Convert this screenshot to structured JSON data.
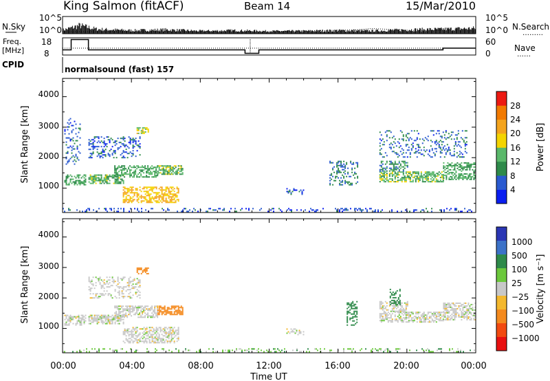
{
  "header": {
    "title_left": "King Salmon (fitACF)",
    "title_center": "Beam 14",
    "title_right": "15/Mar/2010"
  },
  "panel_labels": {
    "nsky": "N.Sky",
    "nsearch": "N.Search",
    "nsearch_dots": "………",
    "freq": "Freq.",
    "mhz": "[MHz]",
    "nave": "Nave",
    "nave_dots": "……",
    "cpid": "CPID",
    "cpid_value": "normalsound (fast) 157"
  },
  "noise_axis": {
    "left_ticks": [
      "10^5",
      "10^0"
    ],
    "right_ticks": [
      "10^5",
      "10^0"
    ]
  },
  "freq_axis": {
    "left_ticks": [
      "18",
      "8"
    ],
    "right_ticks": [
      "60",
      "0"
    ]
  },
  "x_axis": {
    "label": "Time UT",
    "ticks": [
      "00:00",
      "04:00",
      "08:00",
      "12:00",
      "16:00",
      "20:00",
      "00:00"
    ]
  },
  "range_axis": {
    "label": "Slant Range [km]",
    "ticks": [
      "1000",
      "2000",
      "3000",
      "4000"
    ]
  },
  "power_scale": {
    "label": "Power [dB]",
    "ticks": [
      "4",
      "8",
      "12",
      "16",
      "20",
      "24",
      "28"
    ],
    "colors": [
      "#0a1ef0",
      "#2a5ad0",
      "#2e8a4a",
      "#5ab86a",
      "#f4d400",
      "#f4a41e",
      "#f27a00",
      "#ec1a12"
    ]
  },
  "velocity_scale": {
    "label": "Velocity [m s⁻¹]",
    "ticks": [
      "1000",
      "500",
      "100",
      "25",
      "−25",
      "−100",
      "−500",
      "−1000"
    ],
    "colors": [
      "#2a36b4",
      "#3c72c8",
      "#2e8a4a",
      "#6cc83c",
      "#c8c8c8",
      "#f4b82e",
      "#f48a1e",
      "#f24a10",
      "#e81010"
    ]
  },
  "chart_data": [
    {
      "type": "line",
      "title": "",
      "xlabel": "",
      "ylabel": "N.Sky",
      "x_units": "hours UT",
      "series": [
        {
          "name": "N.Sky",
          "x": [
            0,
            1,
            2,
            4,
            6,
            8,
            10,
            12,
            14,
            16,
            18,
            20,
            22,
            24
          ],
          "values": [
            0.2,
            0.45,
            0.25,
            0.18,
            0.22,
            0.15,
            0.18,
            0.14,
            0.15,
            0.18,
            0.16,
            0.22,
            0.25,
            0.3
          ]
        },
        {
          "name": "N.Search",
          "x": [
            0,
            8,
            12,
            17,
            18,
            20,
            24
          ],
          "values": [
            0.12,
            0.12,
            0.12,
            0.22,
            0.3,
            0.2,
            0.15
          ]
        }
      ]
    },
    {
      "type": "line",
      "title": "",
      "xlabel": "",
      "ylabel": "Freq. [MHz]",
      "ylim": [
        8,
        18
      ],
      "series": [
        {
          "name": "Freq.",
          "x": [
            0,
            0.5,
            0.5,
            1.5,
            1.5,
            10.6,
            10.6,
            11.4,
            11.4,
            22.1,
            22.1,
            24
          ],
          "values": [
            11,
            11,
            17,
            17,
            11,
            11,
            9,
            9,
            11,
            11,
            12,
            12
          ]
        },
        {
          "name": "Nave",
          "x": [
            0,
            24
          ],
          "values": [
            12,
            12
          ]
        }
      ]
    },
    {
      "type": "heatmap",
      "title": "",
      "xlabel": "Time UT",
      "ylabel": "Slant Range [km]",
      "xlim": [
        0,
        24
      ],
      "ylim": [
        200,
        4600
      ],
      "colorbar": "Power [dB]",
      "blobs": [
        {
          "t": [
            0.1,
            1.3
          ],
          "r": [
            1100,
            1450
          ],
          "v": 12,
          "d": 0.55
        },
        {
          "t": [
            0.1,
            1.0
          ],
          "r": [
            1800,
            3300
          ],
          "v": 7,
          "d": 0.18
        },
        {
          "t": [
            1.5,
            3.5
          ],
          "r": [
            1150,
            1450
          ],
          "v": 13,
          "d": 0.7
        },
        {
          "t": [
            3.0,
            5.5
          ],
          "r": [
            1350,
            1750
          ],
          "v": 12,
          "d": 0.6
        },
        {
          "t": [
            5.5,
            7.0
          ],
          "r": [
            1450,
            1750
          ],
          "v": 14,
          "d": 0.7
        },
        {
          "t": [
            3.5,
            6.7
          ],
          "r": [
            550,
            1050
          ],
          "v": 20,
          "d": 0.55
        },
        {
          "t": [
            4.3,
            5.0
          ],
          "r": [
            2800,
            3000
          ],
          "v": 18,
          "d": 0.65
        },
        {
          "t": [
            1.5,
            4.5
          ],
          "r": [
            2000,
            2700
          ],
          "v": 6,
          "d": 0.3
        },
        {
          "t": [
            13.0,
            14.0
          ],
          "r": [
            800,
            1000
          ],
          "v": 6,
          "d": 0.3
        },
        {
          "t": [
            15.5,
            17.1
          ],
          "r": [
            1100,
            1900
          ],
          "v": 8,
          "d": 0.3
        },
        {
          "t": [
            18.4,
            22.1
          ],
          "r": [
            1200,
            1550
          ],
          "v": 14,
          "d": 0.6
        },
        {
          "t": [
            18.4,
            20.0
          ],
          "r": [
            1550,
            1900
          ],
          "v": 10,
          "d": 0.5
        },
        {
          "t": [
            22.1,
            24.0
          ],
          "r": [
            1300,
            1850
          ],
          "v": 12,
          "d": 0.55
        },
        {
          "t": [
            18.4,
            23.5
          ],
          "r": [
            2000,
            2900
          ],
          "v": 7,
          "d": 0.2
        },
        {
          "t": [
            0.0,
            24.0
          ],
          "r": [
            250,
            350
          ],
          "v": 5,
          "d": 0.2
        }
      ]
    },
    {
      "type": "heatmap",
      "title": "",
      "xlabel": "Time UT",
      "ylabel": "Slant Range [km]",
      "xlim": [
        0,
        24
      ],
      "ylim": [
        200,
        4600
      ],
      "colorbar": "Velocity [m s⁻¹]",
      "blobs": [
        {
          "t": [
            0.1,
            1.3
          ],
          "r": [
            1100,
            1450
          ],
          "v": 0,
          "d": 0.55
        },
        {
          "t": [
            1.5,
            3.5
          ],
          "r": [
            1150,
            1450
          ],
          "v": 0,
          "d": 0.7
        },
        {
          "t": [
            3.0,
            5.5
          ],
          "r": [
            1350,
            1750
          ],
          "v": 0,
          "d": 0.6
        },
        {
          "t": [
            5.5,
            7.0
          ],
          "r": [
            1450,
            1750
          ],
          "v": -150,
          "d": 0.7
        },
        {
          "t": [
            3.5,
            6.7
          ],
          "r": [
            550,
            1050
          ],
          "v": 0,
          "d": 0.55
        },
        {
          "t": [
            4.3,
            5.0
          ],
          "r": [
            2800,
            3000
          ],
          "v": -200,
          "d": 0.6
        },
        {
          "t": [
            1.5,
            4.5
          ],
          "r": [
            2000,
            2700
          ],
          "v": 0,
          "d": 0.3
        },
        {
          "t": [
            13.0,
            14.0
          ],
          "r": [
            800,
            1000
          ],
          "v": 0,
          "d": 0.3
        },
        {
          "t": [
            16.5,
            17.1
          ],
          "r": [
            1100,
            1900
          ],
          "v": 150,
          "d": 0.4
        },
        {
          "t": [
            18.4,
            22.1
          ],
          "r": [
            1200,
            1550
          ],
          "v": 0,
          "d": 0.6
        },
        {
          "t": [
            18.4,
            20.0
          ],
          "r": [
            1550,
            1900
          ],
          "v": 0,
          "d": 0.5
        },
        {
          "t": [
            22.1,
            24.0
          ],
          "r": [
            1300,
            1850
          ],
          "v": 0,
          "d": 0.55
        },
        {
          "t": [
            19.0,
            19.6
          ],
          "r": [
            1800,
            2300
          ],
          "v": 120,
          "d": 0.4
        },
        {
          "t": [
            0.0,
            24.0
          ],
          "r": [
            250,
            350
          ],
          "v": 40,
          "d": 0.2
        }
      ]
    }
  ]
}
